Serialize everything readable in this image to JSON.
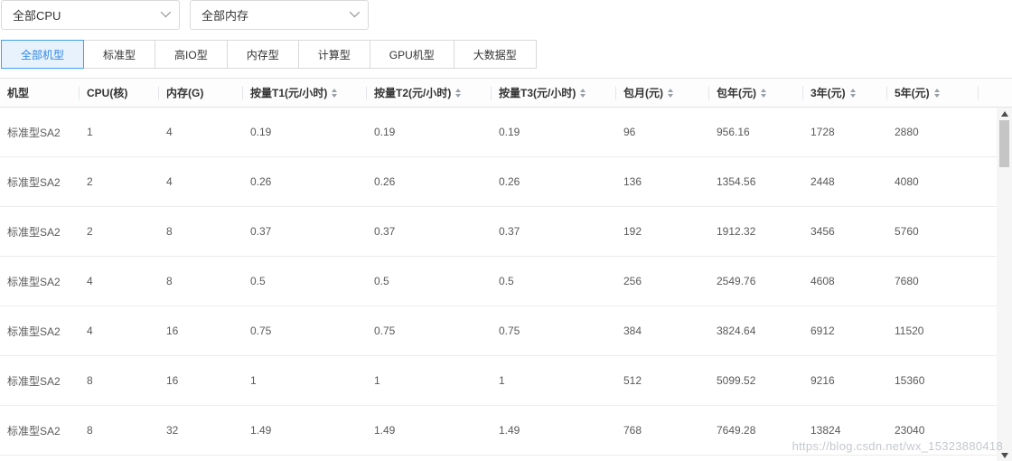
{
  "filters": {
    "cpu_select": {
      "value": "全部CPU"
    },
    "memory_select": {
      "value": "全部内存"
    }
  },
  "tabs": {
    "active_label": "全部机型",
    "items": [
      {
        "label": "全部机型"
      },
      {
        "label": "标准型"
      },
      {
        "label": "高IO型"
      },
      {
        "label": "内存型"
      },
      {
        "label": "计算型"
      },
      {
        "label": "GPU机型"
      },
      {
        "label": "大数据型"
      }
    ]
  },
  "table": {
    "columns": [
      {
        "label": "机型",
        "sortable": false
      },
      {
        "label": "CPU(核)",
        "sortable": false
      },
      {
        "label": "内存(G)",
        "sortable": false
      },
      {
        "label": "按量T1(元/小时)",
        "sortable": true
      },
      {
        "label": "按量T2(元/小时)",
        "sortable": true
      },
      {
        "label": "按量T3(元/小时)",
        "sortable": true
      },
      {
        "label": "包月(元)",
        "sortable": true
      },
      {
        "label": "包年(元)",
        "sortable": true
      },
      {
        "label": "3年(元)",
        "sortable": true
      },
      {
        "label": "5年(元)",
        "sortable": true
      }
    ],
    "rows": [
      [
        "标准型SA2",
        "1",
        "4",
        "0.19",
        "0.19",
        "0.19",
        "96",
        "956.16",
        "1728",
        "2880"
      ],
      [
        "标准型SA2",
        "2",
        "4",
        "0.26",
        "0.26",
        "0.26",
        "136",
        "1354.56",
        "2448",
        "4080"
      ],
      [
        "标准型SA2",
        "2",
        "8",
        "0.37",
        "0.37",
        "0.37",
        "192",
        "1912.32",
        "3456",
        "5760"
      ],
      [
        "标准型SA2",
        "4",
        "8",
        "0.5",
        "0.5",
        "0.5",
        "256",
        "2549.76",
        "4608",
        "7680"
      ],
      [
        "标准型SA2",
        "4",
        "16",
        "0.75",
        "0.75",
        "0.75",
        "384",
        "3824.64",
        "6912",
        "11520"
      ],
      [
        "标准型SA2",
        "8",
        "16",
        "1",
        "1",
        "1",
        "512",
        "5099.52",
        "9216",
        "15360"
      ],
      [
        "标准型SA2",
        "8",
        "32",
        "1.49",
        "1.49",
        "1.49",
        "768",
        "7649.28",
        "13824",
        "23040"
      ]
    ]
  },
  "watermark": {
    "text": "https://blog.csdn.net/wx_15323880418"
  },
  "colors": {
    "accent": "#3388e0",
    "tab_active_bg": "#e7f2fd",
    "tab_active_border": "#41a0f0",
    "row_text": "#595959"
  }
}
